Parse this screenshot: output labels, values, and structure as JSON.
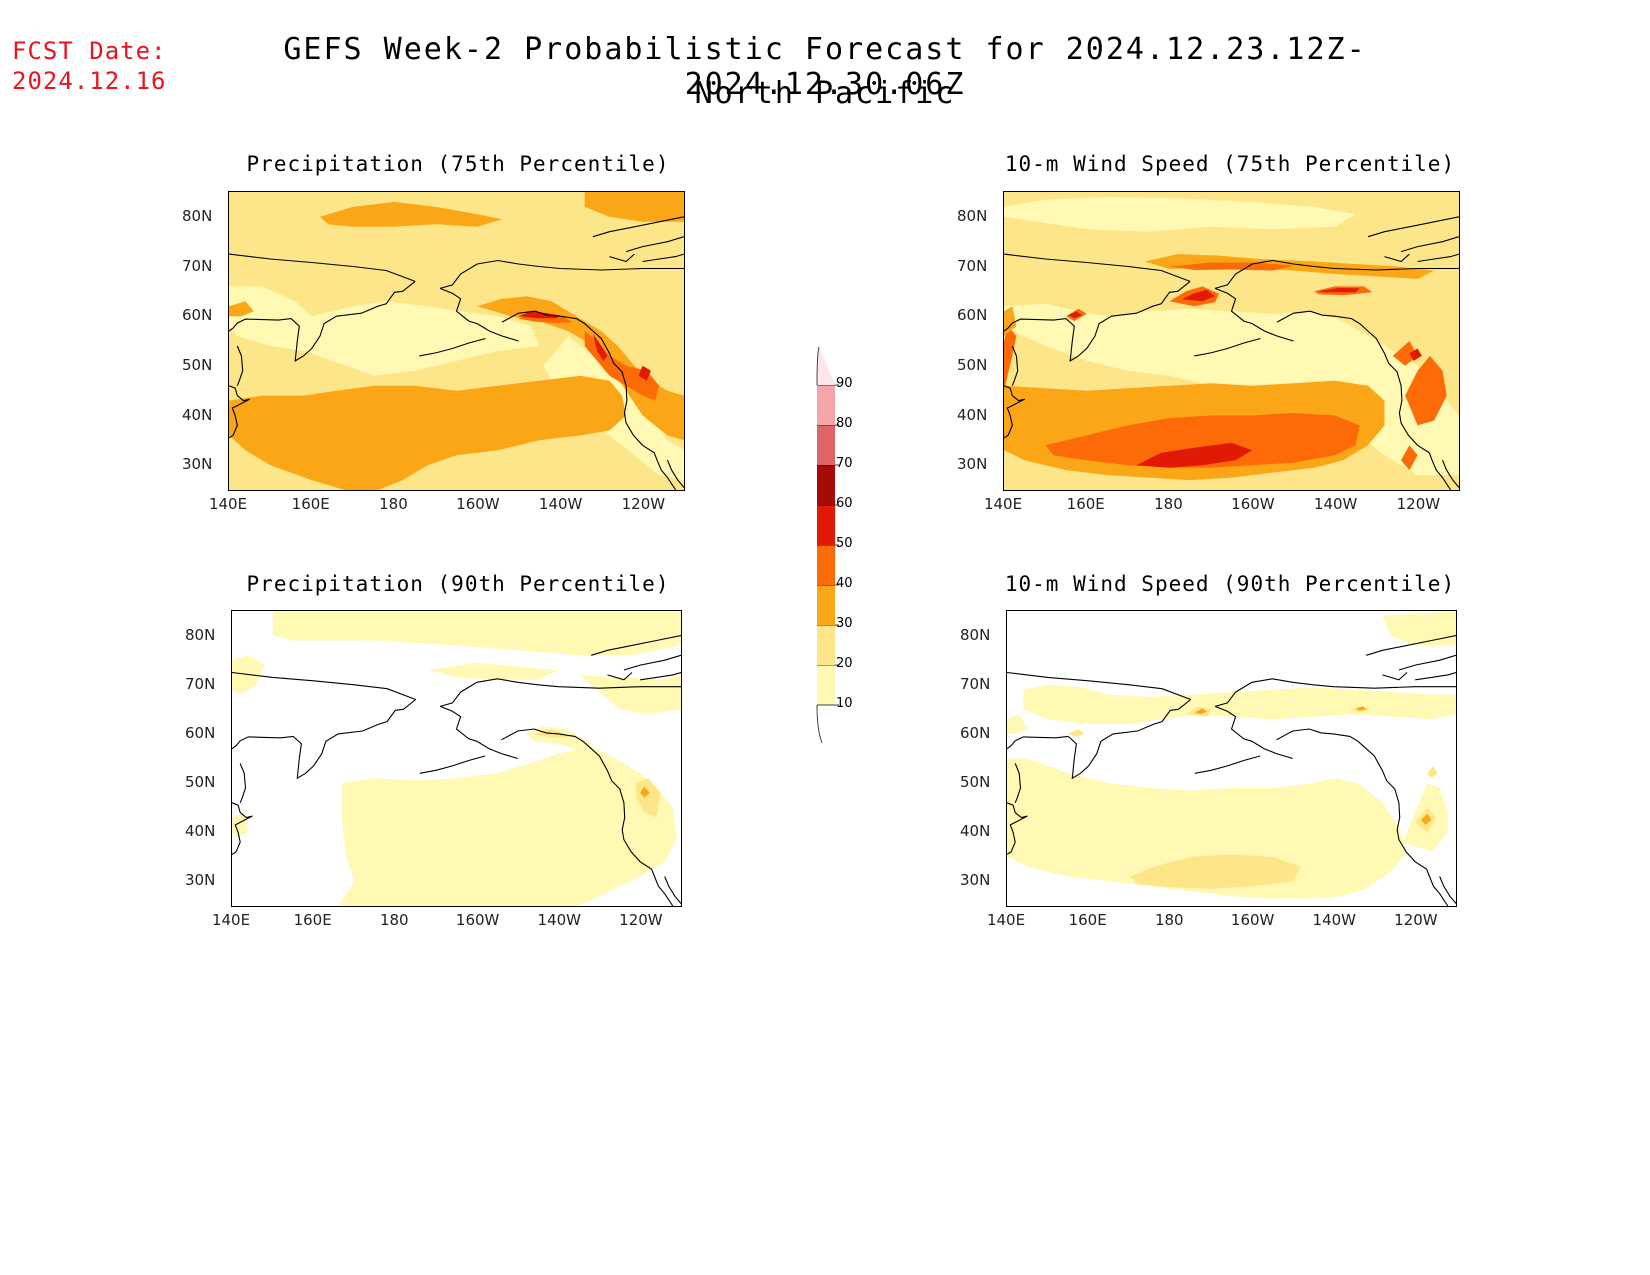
{
  "fcst_date": {
    "label": "FCST Date:",
    "value": "2024.12.16"
  },
  "title": {
    "line1": "GEFS Week-2 Probabilistic Forecast for 2024.12.23.12Z-2024.12.30.06Z",
    "line2": "North Pacific"
  },
  "axes": {
    "x_ticks": [
      "140E",
      "160E",
      "180",
      "160W",
      "140W",
      "120W"
    ],
    "y_ticks": [
      "80N",
      "70N",
      "60N",
      "50N",
      "40N",
      "30N"
    ]
  },
  "panels": [
    {
      "title": "Precipitation (75th Percentile)"
    },
    {
      "title": "10-m Wind Speed (75th Percentile)"
    },
    {
      "title": "Precipitation (90th Percentile)"
    },
    {
      "title": "10-m Wind Speed (90th Percentile)"
    }
  ],
  "colorbar": {
    "levels": [
      "10",
      "20",
      "30",
      "40",
      "50",
      "60",
      "70",
      "80",
      "90"
    ],
    "colors": [
      "#fff9b4",
      "#fde68a",
      "#fba617",
      "#fd6a08",
      "#e11a05",
      "#a50c05",
      "#de6565",
      "#f4a5a8",
      "#fde6ea"
    ]
  }
}
